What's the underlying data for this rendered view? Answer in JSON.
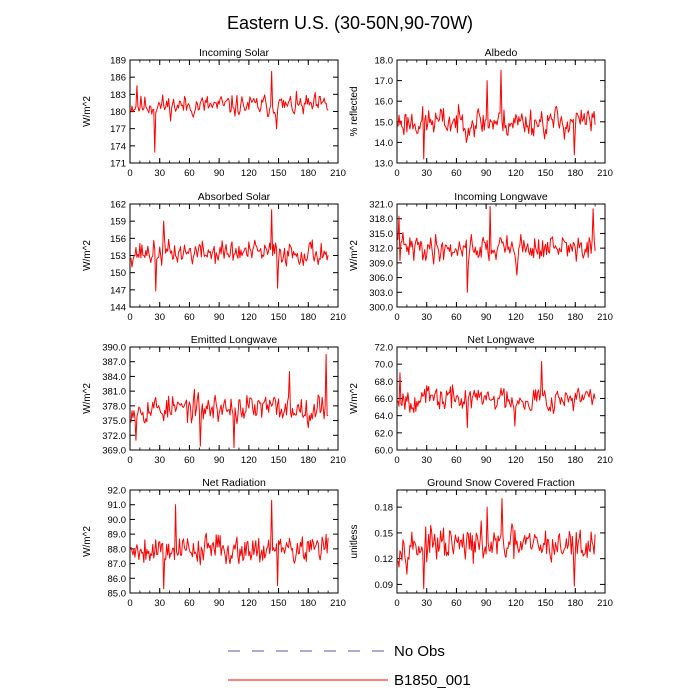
{
  "title": "Eastern U.S. (30-50N,90-70W)",
  "legend": [
    {
      "label": "No Obs",
      "color": "#5555aa",
      "dashed": true
    },
    {
      "label": "B1850_001",
      "color": "#ff0000",
      "dashed": false
    }
  ],
  "series_color": "#ff0000",
  "chart_data": [
    {
      "type": "line",
      "title": "Incoming Solar",
      "ylabel": "W/m^2",
      "xlim": [
        0,
        210
      ],
      "ylim": [
        171,
        189
      ],
      "xticks": [
        "0",
        "30",
        "60",
        "90",
        "120",
        "150",
        "180",
        "210"
      ],
      "yticks": [
        "171",
        "174",
        "177",
        "180",
        "183",
        "186",
        "189"
      ],
      "series": [
        {
          "name": "B1850_001",
          "mean": 181.0,
          "amp": 1.7,
          "seed": 11,
          "n": 200,
          "extremes": [
            [
              24,
              172.9
            ],
            [
              142,
              187.0
            ],
            [
              6,
              184.5
            ],
            [
              147,
              177.0
            ]
          ]
        }
      ]
    },
    {
      "type": "line",
      "title": "Albedo",
      "ylabel": "% reflected",
      "xlim": [
        0,
        210
      ],
      "ylim": [
        13.0,
        18.0
      ],
      "xticks": [
        "0",
        "30",
        "60",
        "90",
        "120",
        "150",
        "180",
        "210"
      ],
      "yticks": [
        "13.0",
        "14.0",
        "15.0",
        "16.0",
        "17.0",
        "18.0"
      ],
      "series": [
        {
          "name": "B1850_001",
          "mean": 15.0,
          "amp": 0.65,
          "seed": 23,
          "n": 200,
          "extremes": [
            [
              104,
              17.5
            ],
            [
              26,
              13.2
            ],
            [
              90,
              17.0
            ],
            [
              178,
              13.4
            ]
          ]
        }
      ]
    },
    {
      "type": "line",
      "title": "Absorbed Solar",
      "ylabel": "W/m^2",
      "xlim": [
        0,
        210
      ],
      "ylim": [
        144,
        162
      ],
      "xticks": [
        "0",
        "30",
        "60",
        "90",
        "120",
        "150",
        "180",
        "210"
      ],
      "yticks": [
        "144",
        "147",
        "150",
        "153",
        "156",
        "159",
        "162"
      ],
      "series": [
        {
          "name": "B1850_001",
          "mean": 153.5,
          "amp": 1.9,
          "seed": 37,
          "n": 200,
          "extremes": [
            [
              142,
              161.0
            ],
            [
              25,
              146.8
            ],
            [
              148,
              147.3
            ],
            [
              33,
              159.0
            ]
          ]
        }
      ]
    },
    {
      "type": "line",
      "title": "Incoming Longwave",
      "ylabel": "W/m^2",
      "xlim": [
        0,
        210
      ],
      "ylim": [
        300.0,
        321.0
      ],
      "xticks": [
        "0",
        "30",
        "60",
        "90",
        "120",
        "150",
        "180",
        "210"
      ],
      "yticks": [
        "300.0",
        "303.0",
        "306.0",
        "309.0",
        "312.0",
        "315.0",
        "318.0",
        "321.0"
      ],
      "series": [
        {
          "name": "B1850_001",
          "mean": 312.0,
          "amp": 2.5,
          "seed": 41,
          "n": 200,
          "extremes": [
            [
              93,
              320.5
            ],
            [
              70,
              303.0
            ],
            [
              197,
              320.0
            ],
            [
              1,
              318.5
            ],
            [
              120,
              306.5
            ]
          ]
        }
      ]
    },
    {
      "type": "line",
      "title": "Emitted Longwave",
      "ylabel": "W/m^2",
      "xlim": [
        0,
        210
      ],
      "ylim": [
        369.0,
        390.0
      ],
      "xticks": [
        "0",
        "30",
        "60",
        "90",
        "120",
        "150",
        "180",
        "210"
      ],
      "yticks": [
        "369.0",
        "372.0",
        "375.0",
        "378.0",
        "381.0",
        "384.0",
        "387.0",
        "390.0"
      ],
      "series": [
        {
          "name": "B1850_001",
          "mean": 377.5,
          "amp": 2.6,
          "seed": 53,
          "n": 200,
          "extremes": [
            [
              197,
              388.5
            ],
            [
              104,
              369.5
            ],
            [
              5,
              371.0
            ],
            [
              70,
              369.8
            ],
            [
              160,
              385.0
            ]
          ]
        }
      ]
    },
    {
      "type": "line",
      "title": "Net Longwave",
      "ylabel": "W/m^2",
      "xlim": [
        0,
        210
      ],
      "ylim": [
        60.0,
        72.0
      ],
      "xticks": [
        "0",
        "30",
        "60",
        "90",
        "120",
        "150",
        "180",
        "210"
      ],
      "yticks": [
        "60.0",
        "62.0",
        "64.0",
        "66.0",
        "68.0",
        "70.0",
        "72.0"
      ],
      "series": [
        {
          "name": "B1850_001",
          "mean": 66.0,
          "amp": 1.3,
          "seed": 67,
          "n": 200,
          "extremes": [
            [
              145,
              70.3
            ],
            [
              70,
              62.6
            ],
            [
              2,
              69.0
            ],
            [
              118,
              62.8
            ]
          ]
        }
      ]
    },
    {
      "type": "line",
      "title": "Net Radiation",
      "ylabel": "W/m^2",
      "xlim": [
        0,
        210
      ],
      "ylim": [
        85.0,
        92.0
      ],
      "xticks": [
        "0",
        "30",
        "60",
        "90",
        "120",
        "150",
        "180",
        "210"
      ],
      "yticks": [
        "85.0",
        "86.0",
        "87.0",
        "88.0",
        "89.0",
        "90.0",
        "91.0",
        "92.0"
      ],
      "series": [
        {
          "name": "B1850_001",
          "mean": 88.0,
          "amp": 0.9,
          "seed": 79,
          "n": 200,
          "extremes": [
            [
              142,
              91.3
            ],
            [
              33,
              85.3
            ],
            [
              45,
              91.0
            ],
            [
              148,
              85.5
            ]
          ]
        }
      ]
    },
    {
      "type": "line",
      "title": "Ground Snow Covered Fraction",
      "ylabel": "unitless",
      "xlim": [
        0,
        210
      ],
      "ylim": [
        0.08,
        0.2
      ],
      "xticks": [
        "0",
        "30",
        "60",
        "90",
        "120",
        "150",
        "180",
        "210"
      ],
      "yticks": [
        "0.09",
        "0.12",
        "0.15",
        "0.18"
      ],
      "series": [
        {
          "name": "B1850_001",
          "mean": 0.135,
          "amp": 0.018,
          "seed": 97,
          "n": 200,
          "extremes": [
            [
              105,
              0.19
            ],
            [
              26,
              0.085
            ],
            [
              90,
              0.18
            ],
            [
              178,
              0.088
            ]
          ]
        }
      ]
    }
  ]
}
